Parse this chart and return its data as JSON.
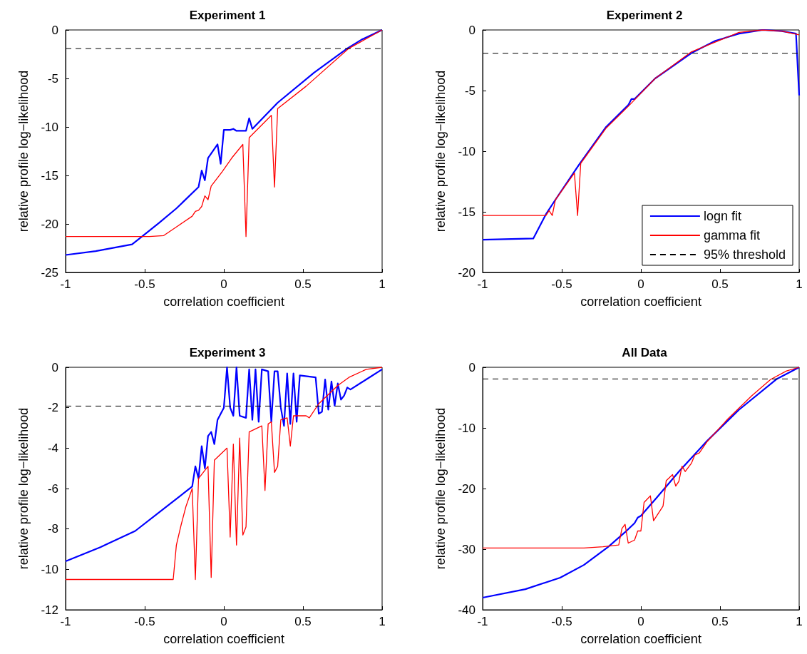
{
  "chart_data": [
    {
      "type": "line",
      "title": "Experiment 1",
      "xlabel": "correlation coefficient",
      "ylabel": "relative profile log−likelihood",
      "xlim": [
        -1,
        1
      ],
      "xticks": [
        -1,
        -0.5,
        0,
        0.5,
        1
      ],
      "ylim": [
        -25,
        0
      ],
      "yticks": [
        -25,
        -20,
        -15,
        -10,
        -5,
        0
      ],
      "series": [
        {
          "color": "#0000ff",
          "x": [
            -1,
            -0.81,
            -0.58,
            -0.51,
            -0.41,
            -0.3,
            -0.16,
            -0.14,
            -0.12,
            -0.1,
            -0.04,
            -0.02,
            0,
            0.04,
            0.06,
            0.08,
            0.14,
            0.16,
            0.18,
            0.34,
            0.57,
            0.78,
            0.87,
            1
          ],
          "values": [
            -23.2,
            -22.8,
            -22.1,
            -21.2,
            -19.9,
            -18.4,
            -16.2,
            -14.5,
            -15.5,
            -13.2,
            -11.8,
            -13.8,
            -10.3,
            -10.3,
            -10.2,
            -10.4,
            -10.4,
            -9.1,
            -10.2,
            -7.5,
            -4.4,
            -1.9,
            -1,
            0
          ]
        },
        {
          "color": "#ff0000",
          "x": [
            -1,
            -0.47,
            -0.38,
            -0.29,
            -0.2,
            -0.18,
            -0.16,
            -0.14,
            -0.12,
            -0.1,
            -0.08,
            -0.01,
            0.05,
            0.12,
            0.14,
            0.16,
            0.3,
            0.32,
            0.34,
            0.52,
            0.79,
            1
          ],
          "values": [
            -21.3,
            -21.3,
            -21.2,
            -20.2,
            -19.2,
            -18.7,
            -18.6,
            -18.2,
            -17.1,
            -17.5,
            -16.1,
            -14.6,
            -13.2,
            -11.8,
            -21.3,
            -11.1,
            -8.8,
            -16.2,
            -8.1,
            -5.8,
            -1.9,
            0
          ]
        }
      ],
      "ref_lines": [
        {
          "axis": "y",
          "value": -1.92,
          "color": "#000000",
          "line_style": "dashed"
        }
      ]
    },
    {
      "type": "line",
      "title": "Experiment 2",
      "xlabel": "correlation coefficient",
      "ylabel": "relative profile log−likelihood",
      "xlim": [
        -1,
        1
      ],
      "xticks": [
        -1,
        -0.5,
        0,
        0.5,
        1
      ],
      "ylim": [
        -20,
        0
      ],
      "yticks": [
        -20,
        -15,
        -10,
        -5,
        0
      ],
      "legend": "bottom right",
      "series": [
        {
          "name": "logn fit",
          "color": "#0000ff",
          "x": [
            -1,
            -0.68,
            -0.6,
            -0.54,
            -0.39,
            -0.22,
            -0.08,
            -0.06,
            -0.04,
            0.09,
            0.32,
            0.47,
            0.62,
            0.77,
            0.89,
            0.98,
            1
          ],
          "values": [
            -17.3,
            -17.2,
            -15.2,
            -14,
            -11.1,
            -8,
            -6.2,
            -5.7,
            -5.7,
            -4,
            -1.9,
            -0.9,
            -0.3,
            0,
            -0.1,
            -0.3,
            -5.4
          ]
        },
        {
          "name": "gamma fit",
          "color": "#ff0000",
          "x": [
            -1,
            -0.6,
            -0.58,
            -0.56,
            -0.54,
            -0.42,
            -0.4,
            -0.38,
            -0.22,
            -0.08,
            0.09,
            0.32,
            0.62,
            0.77,
            0.89,
            1
          ],
          "values": [
            -15.3,
            -15.3,
            -14.9,
            -15.3,
            -14,
            -11.8,
            -15.3,
            -11,
            -8.1,
            -6.3,
            -4,
            -1.8,
            -0.2,
            0,
            -0.1,
            -0.4
          ]
        }
      ],
      "ref_lines": [
        {
          "axis": "y",
          "value": -1.92,
          "label": "95% threshold",
          "color": "#000000",
          "line_style": "dashed"
        }
      ]
    },
    {
      "type": "line",
      "title": "Experiment 3",
      "xlabel": "correlation coefficient",
      "ylabel": "relative profile log−likelihood",
      "xlim": [
        -1,
        1
      ],
      "xticks": [
        -1,
        -0.5,
        0,
        0.5,
        1
      ],
      "ylim": [
        -12,
        0
      ],
      "yticks": [
        -12,
        -10,
        -8,
        -6,
        -4,
        -2,
        0
      ],
      "series": [
        {
          "color": "#0000ff",
          "x": [
            -1,
            -0.78,
            -0.56,
            -0.38,
            -0.2,
            -0.18,
            -0.16,
            -0.14,
            -0.12,
            -0.1,
            -0.08,
            -0.06,
            -0.04,
            0,
            0.02,
            0.04,
            0.06,
            0.08,
            0.1,
            0.14,
            0.16,
            0.18,
            0.2,
            0.22,
            0.24,
            0.28,
            0.3,
            0.32,
            0.34,
            0.36,
            0.38,
            0.4,
            0.42,
            0.44,
            0.46,
            0.48,
            0.58,
            0.6,
            0.62,
            0.64,
            0.66,
            0.68,
            0.7,
            0.72,
            0.74,
            0.76,
            0.78,
            0.8,
            0.9,
            1
          ],
          "values": [
            -9.6,
            -8.9,
            -8.1,
            -7,
            -5.9,
            -4.9,
            -5.5,
            -3.9,
            -5,
            -3.4,
            -3.2,
            -3.8,
            -2.6,
            -2,
            0,
            -2,
            -2.4,
            0,
            -2.4,
            -2.5,
            -0.1,
            -2.6,
            -0.1,
            -2.7,
            -0.1,
            -0.2,
            -2.7,
            -0.2,
            -0.2,
            -2,
            -2.9,
            -0.3,
            -2.8,
            -0.3,
            -2.7,
            -0.4,
            -0.5,
            -2.3,
            -2.2,
            -0.6,
            -2.1,
            -0.7,
            -1.9,
            -0.8,
            -1.6,
            -1.4,
            -1,
            -1.1,
            -0.6,
            -0.1
          ]
        },
        {
          "color": "#ff0000",
          "x": [
            -1,
            -0.32,
            -0.3,
            -0.27,
            -0.24,
            -0.2,
            -0.18,
            -0.16,
            -0.1,
            -0.08,
            -0.06,
            0.02,
            0.04,
            0.06,
            0.08,
            0.1,
            0.12,
            0.14,
            0.16,
            0.24,
            0.26,
            0.28,
            0.3,
            0.32,
            0.34,
            0.36,
            0.4,
            0.42,
            0.44,
            0.52,
            0.54,
            0.6,
            0.72,
            0.79,
            0.9,
            1
          ],
          "values": [
            -10.5,
            -10.5,
            -8.8,
            -7.8,
            -6.9,
            -6,
            -10.5,
            -5.5,
            -4.9,
            -10.4,
            -4.6,
            -4,
            -8.4,
            -3.8,
            -8.8,
            -3.5,
            -8.3,
            -7.9,
            -3.2,
            -2.9,
            -6.1,
            -2.8,
            -2.7,
            -5.2,
            -4.9,
            -2.6,
            -2.5,
            -3.9,
            -2.4,
            -2.4,
            -2.5,
            -1.8,
            -0.9,
            -0.5,
            -0.1,
            0
          ]
        }
      ],
      "ref_lines": [
        {
          "axis": "y",
          "value": -1.92,
          "color": "#000000",
          "line_style": "dashed"
        }
      ]
    },
    {
      "type": "line",
      "title": "All Data",
      "xlabel": "correlation coefficient",
      "ylabel": "relative profile log−likelihood",
      "xlim": [
        -1,
        1
      ],
      "xticks": [
        -1,
        -0.5,
        0,
        0.5,
        1
      ],
      "ylim": [
        -40,
        0
      ],
      "yticks": [
        -40,
        -30,
        -20,
        -10,
        0
      ],
      "series": [
        {
          "color": "#0000ff",
          "x": [
            -1,
            -0.73,
            -0.51,
            -0.36,
            -0.21,
            -0.1,
            -0.04,
            -0.02,
            0,
            0.1,
            0.24,
            0.42,
            0.62,
            0.86,
            1
          ],
          "values": [
            -38,
            -36.6,
            -34.7,
            -32.6,
            -29.7,
            -27.2,
            -25.7,
            -24.8,
            -24.5,
            -21.5,
            -17.2,
            -12.1,
            -7,
            -1.9,
            0
          ]
        },
        {
          "color": "#ff0000",
          "x": [
            -1,
            -0.36,
            -0.24,
            -0.14,
            -0.12,
            -0.1,
            -0.08,
            -0.04,
            -0.02,
            0,
            0.02,
            0.06,
            0.08,
            0.14,
            0.16,
            0.2,
            0.22,
            0.24,
            0.26,
            0.28,
            0.32,
            0.34,
            0.37,
            0.42,
            0.55,
            0.7,
            0.82,
            0.92,
            1
          ],
          "values": [
            -29.8,
            -29.8,
            -29.6,
            -29.3,
            -26.6,
            -25.9,
            -29,
            -28.5,
            -27,
            -27,
            -22.3,
            -21.2,
            -25.3,
            -22.9,
            -18.7,
            -17.7,
            -19.6,
            -18.8,
            -16.3,
            -17.2,
            -15.8,
            -14.5,
            -14.1,
            -12.2,
            -8.5,
            -4.7,
            -2,
            -0.6,
            0
          ]
        }
      ],
      "ref_lines": [
        {
          "axis": "y",
          "value": -1.92,
          "color": "#000000",
          "line_style": "dashed"
        }
      ]
    }
  ]
}
